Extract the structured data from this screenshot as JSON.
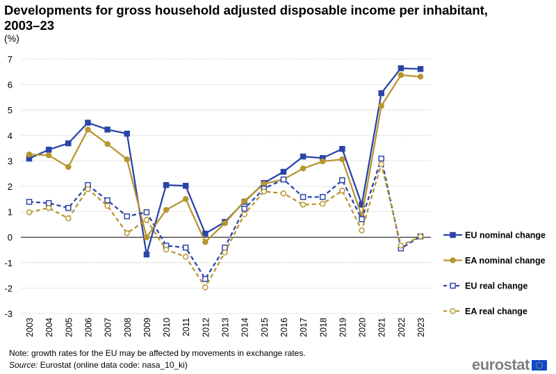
{
  "chart_data": {
    "type": "line",
    "title": "Developments for gross household adjusted disposable income per inhabitant, 2003–23",
    "ylabel": "(%)",
    "ylim": [
      -3,
      7
    ],
    "yticks": [
      "-3",
      "-2",
      "-1",
      "0",
      "1",
      "2",
      "3",
      "4",
      "5",
      "6",
      "7"
    ],
    "categories": [
      "2003",
      "2004",
      "2005",
      "2006",
      "2007",
      "2008",
      "2009",
      "2010",
      "2011",
      "2012",
      "2013",
      "2014",
      "2015",
      "2016",
      "2017",
      "2018",
      "2019",
      "2020",
      "2021",
      "2022",
      "2023"
    ],
    "legend_position": "right",
    "grid": true,
    "series": [
      {
        "name": "EU nominal change",
        "color": "#2b44a8",
        "style": "solid",
        "marker": "square-filled",
        "values": [
          3.09,
          3.44,
          3.69,
          4.5,
          4.23,
          4.07,
          -0.68,
          2.05,
          2.02,
          0.14,
          0.6,
          1.39,
          2.13,
          2.57,
          3.17,
          3.11,
          3.47,
          1.28,
          5.66,
          6.64,
          6.61
        ]
      },
      {
        "name": "EA nominal change",
        "color": "#b8962e",
        "style": "solid",
        "marker": "circle-filled",
        "values": [
          3.25,
          3.22,
          2.76,
          4.23,
          3.66,
          3.06,
          0.0,
          1.07,
          1.5,
          -0.19,
          0.55,
          1.42,
          2.1,
          2.27,
          2.7,
          2.98,
          3.06,
          0.82,
          5.16,
          6.37,
          6.31
        ]
      },
      {
        "name": "EU real change",
        "color": "#2b44a8",
        "style": "dashed",
        "marker": "square-hollow",
        "values": [
          1.39,
          1.34,
          1.15,
          2.05,
          1.45,
          0.82,
          0.98,
          -0.33,
          -0.41,
          -1.64,
          -0.41,
          1.12,
          1.91,
          2.27,
          1.58,
          1.58,
          2.24,
          0.71,
          3.09,
          -0.44,
          0.03
        ]
      },
      {
        "name": "EA real change",
        "color": "#b8962e",
        "style": "dashed",
        "marker": "circle-hollow",
        "values": [
          0.98,
          1.15,
          0.74,
          1.89,
          1.23,
          0.16,
          0.68,
          -0.49,
          -0.77,
          -1.97,
          -0.6,
          0.9,
          1.8,
          1.72,
          1.28,
          1.31,
          1.83,
          0.27,
          2.87,
          -0.33,
          0.03
        ]
      }
    ]
  },
  "footer": {
    "note": "Note: growth rates for the EU may be affected by movements in exchange rates.",
    "source_label": "Source:",
    "source_text": " Eurostat (online data code: nasa_10_ki)"
  },
  "logo": {
    "text": "eurostat"
  }
}
